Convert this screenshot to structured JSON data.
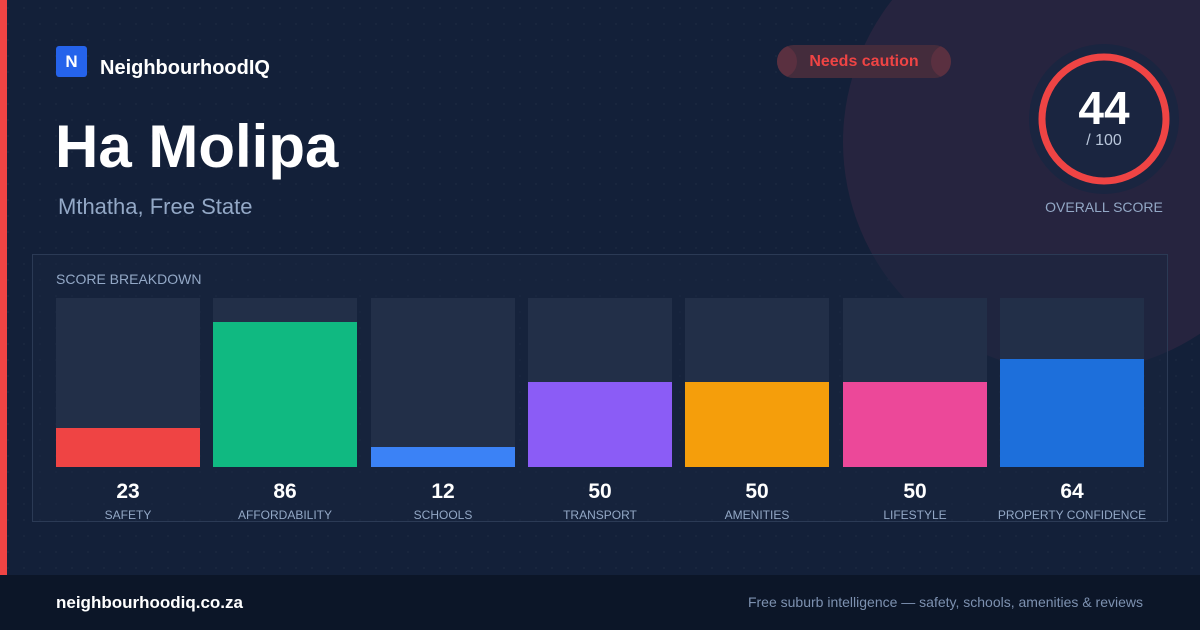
{
  "brand": {
    "logo_letter": "N",
    "name": "NeighbourhoodIQ",
    "logo_color": "#2563eb"
  },
  "badge": {
    "label": "Needs caution",
    "color": "#ef4444"
  },
  "accent_color": "#ef4444",
  "suburb": {
    "name": "Ha Molipa",
    "location": "Mthatha, Free State"
  },
  "overall": {
    "score": "44",
    "max": "/ 100",
    "caption": "OVERALL SCORE",
    "value": 44,
    "ring_color": "#ef4444"
  },
  "breakdown": {
    "title": "SCORE BREAKDOWN"
  },
  "chart_data": {
    "type": "bar",
    "title": "SCORE BREAKDOWN",
    "categories": [
      "SAFETY",
      "AFFORDABILITY",
      "SCHOOLS",
      "TRANSPORT",
      "AMENITIES",
      "LIFESTYLE",
      "PROPERTY CONFIDENCE"
    ],
    "values": [
      23,
      86,
      12,
      50,
      50,
      50,
      64
    ],
    "colors": [
      "#ef4444",
      "#10b981",
      "#3b82f6",
      "#8b5cf6",
      "#f59e0b",
      "#ec4899",
      "#1d6fdb"
    ],
    "ylim": [
      0,
      100
    ],
    "grid": false
  },
  "footer": {
    "url": "neighbourhoodiq.co.za",
    "tagline": "Free suburb intelligence — safety, schools, amenities & reviews"
  }
}
